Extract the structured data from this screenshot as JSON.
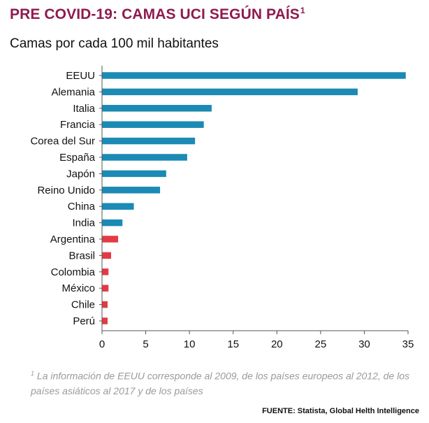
{
  "header": {
    "title": "PRE COVID-19: CAMAS UCI SEGÚN PAÍS",
    "title_footnote_mark": "1",
    "subtitle": "Camas por cada 100 mil habitantes"
  },
  "footer": {
    "footnote_mark": "1",
    "footnote": "La información de EEUU corresponde al 2009, de los países europeos al 2012, de los países asiáticos al 2017 y de los países",
    "source": "FUENTE: Statista, Global Helth Intelligence"
  },
  "colors": {
    "title": "#8e1b4f",
    "bar_primary": "#1b8ab4",
    "bar_highlight": "#e23b45",
    "axis": "#555555"
  },
  "chart_data": {
    "type": "bar",
    "orientation": "horizontal",
    "categories": [
      "EEUU",
      "Alemania",
      "Italia",
      "Francia",
      "Corea del Sur",
      "España",
      "Japón",
      "Reino Unido",
      "China",
      "India",
      "Argentina",
      "Brasil",
      "Colombia",
      "México",
      "Chile",
      "Perú"
    ],
    "values": [
      34.7,
      29.2,
      12.5,
      11.6,
      10.6,
      9.7,
      7.3,
      6.6,
      3.6,
      2.3,
      1.8,
      1.0,
      0.7,
      0.7,
      0.6,
      0.6
    ],
    "highlighted_categories": [
      "Argentina",
      "Brasil",
      "Colombia",
      "México",
      "Chile",
      "Perú"
    ],
    "xlim": [
      0,
      35
    ],
    "xticks": [
      0,
      5,
      10,
      15,
      20,
      25,
      30,
      35
    ],
    "grid": false,
    "title": "PRE COVID-19: CAMAS UCI SEGÚN PAÍS",
    "subtitle": "Camas por cada 100 mil habitantes"
  }
}
